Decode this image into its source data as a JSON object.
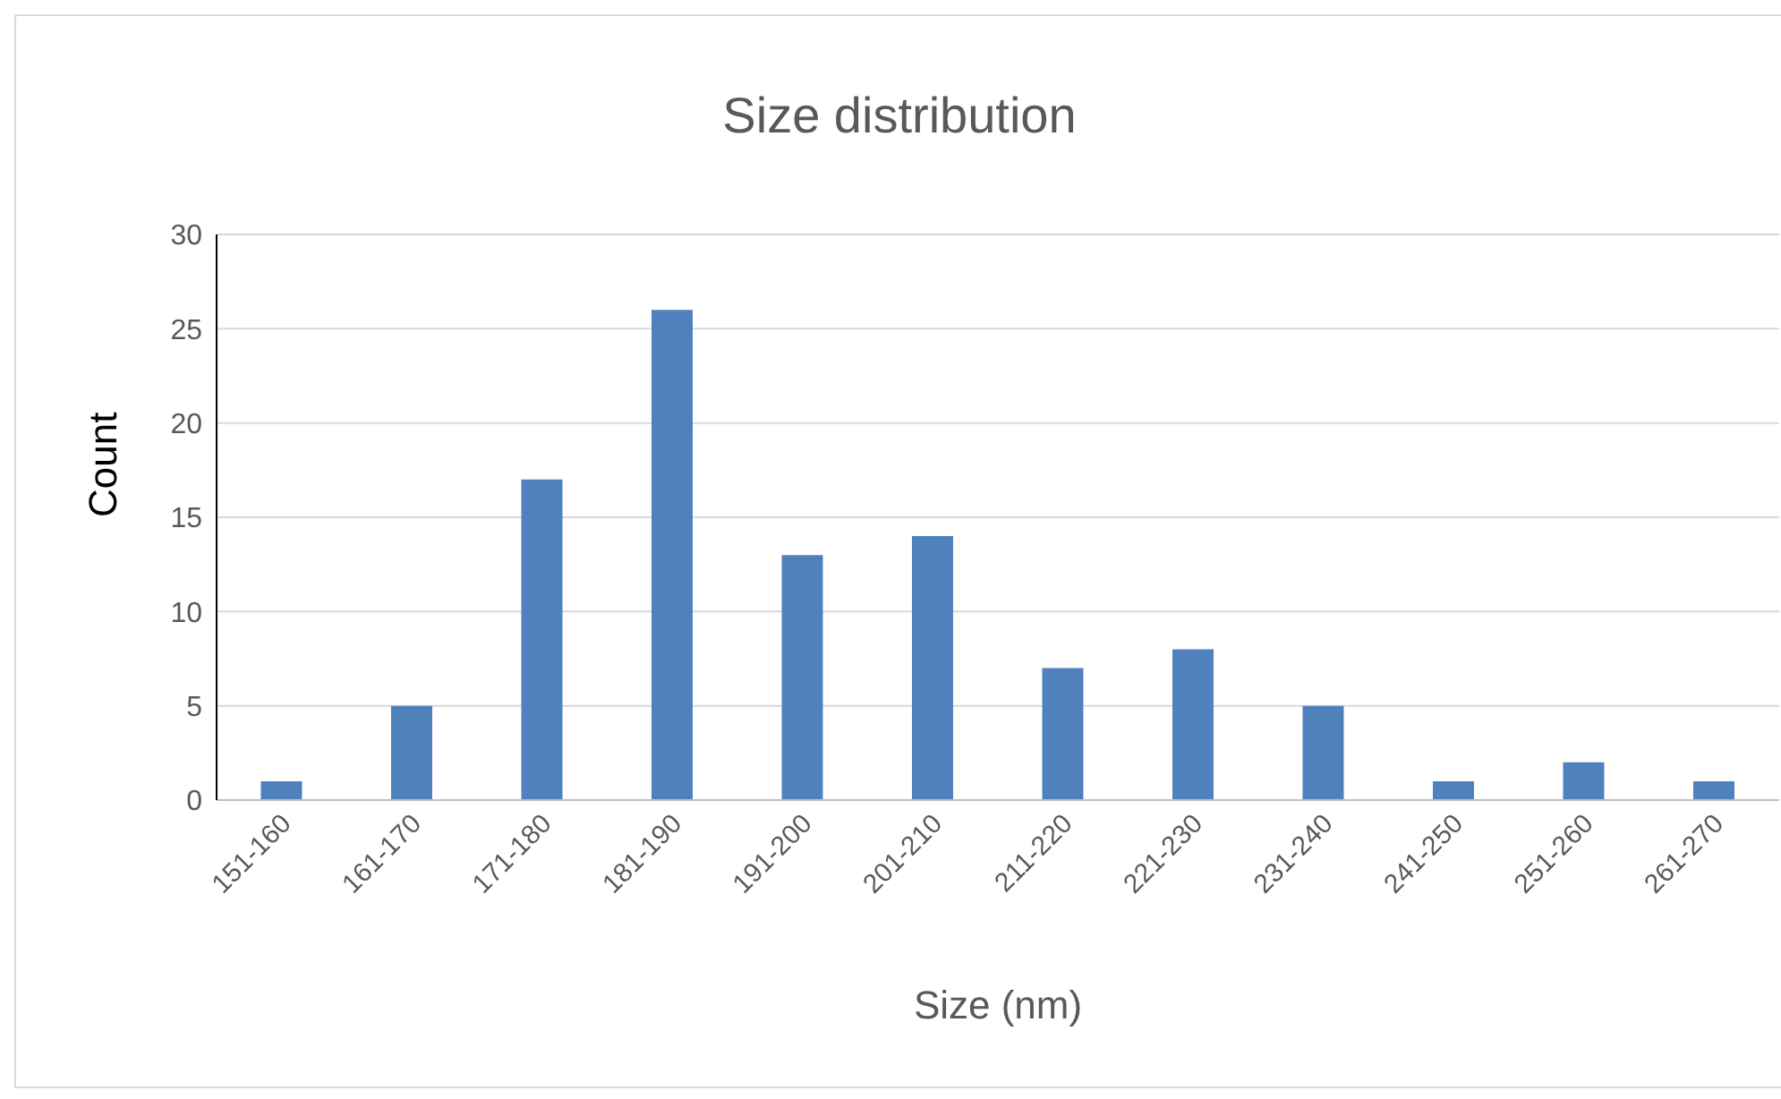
{
  "chart_data": {
    "type": "bar",
    "title": "Size distribution",
    "xlabel": "Size (nm)",
    "ylabel": "Count",
    "categories": [
      "151-160",
      "161-170",
      "171-180",
      "181-190",
      "191-200",
      "201-210",
      "211-220",
      "221-230",
      "231-240",
      "241-250",
      "251-260",
      "261-270"
    ],
    "values": [
      1,
      5,
      17,
      26,
      13,
      14,
      7,
      8,
      5,
      1,
      2,
      1
    ],
    "color": "#4f81bd",
    "ylim": [
      0,
      30
    ],
    "yticks": [
      0,
      5,
      10,
      15,
      20,
      25,
      30
    ],
    "grid": "y"
  }
}
